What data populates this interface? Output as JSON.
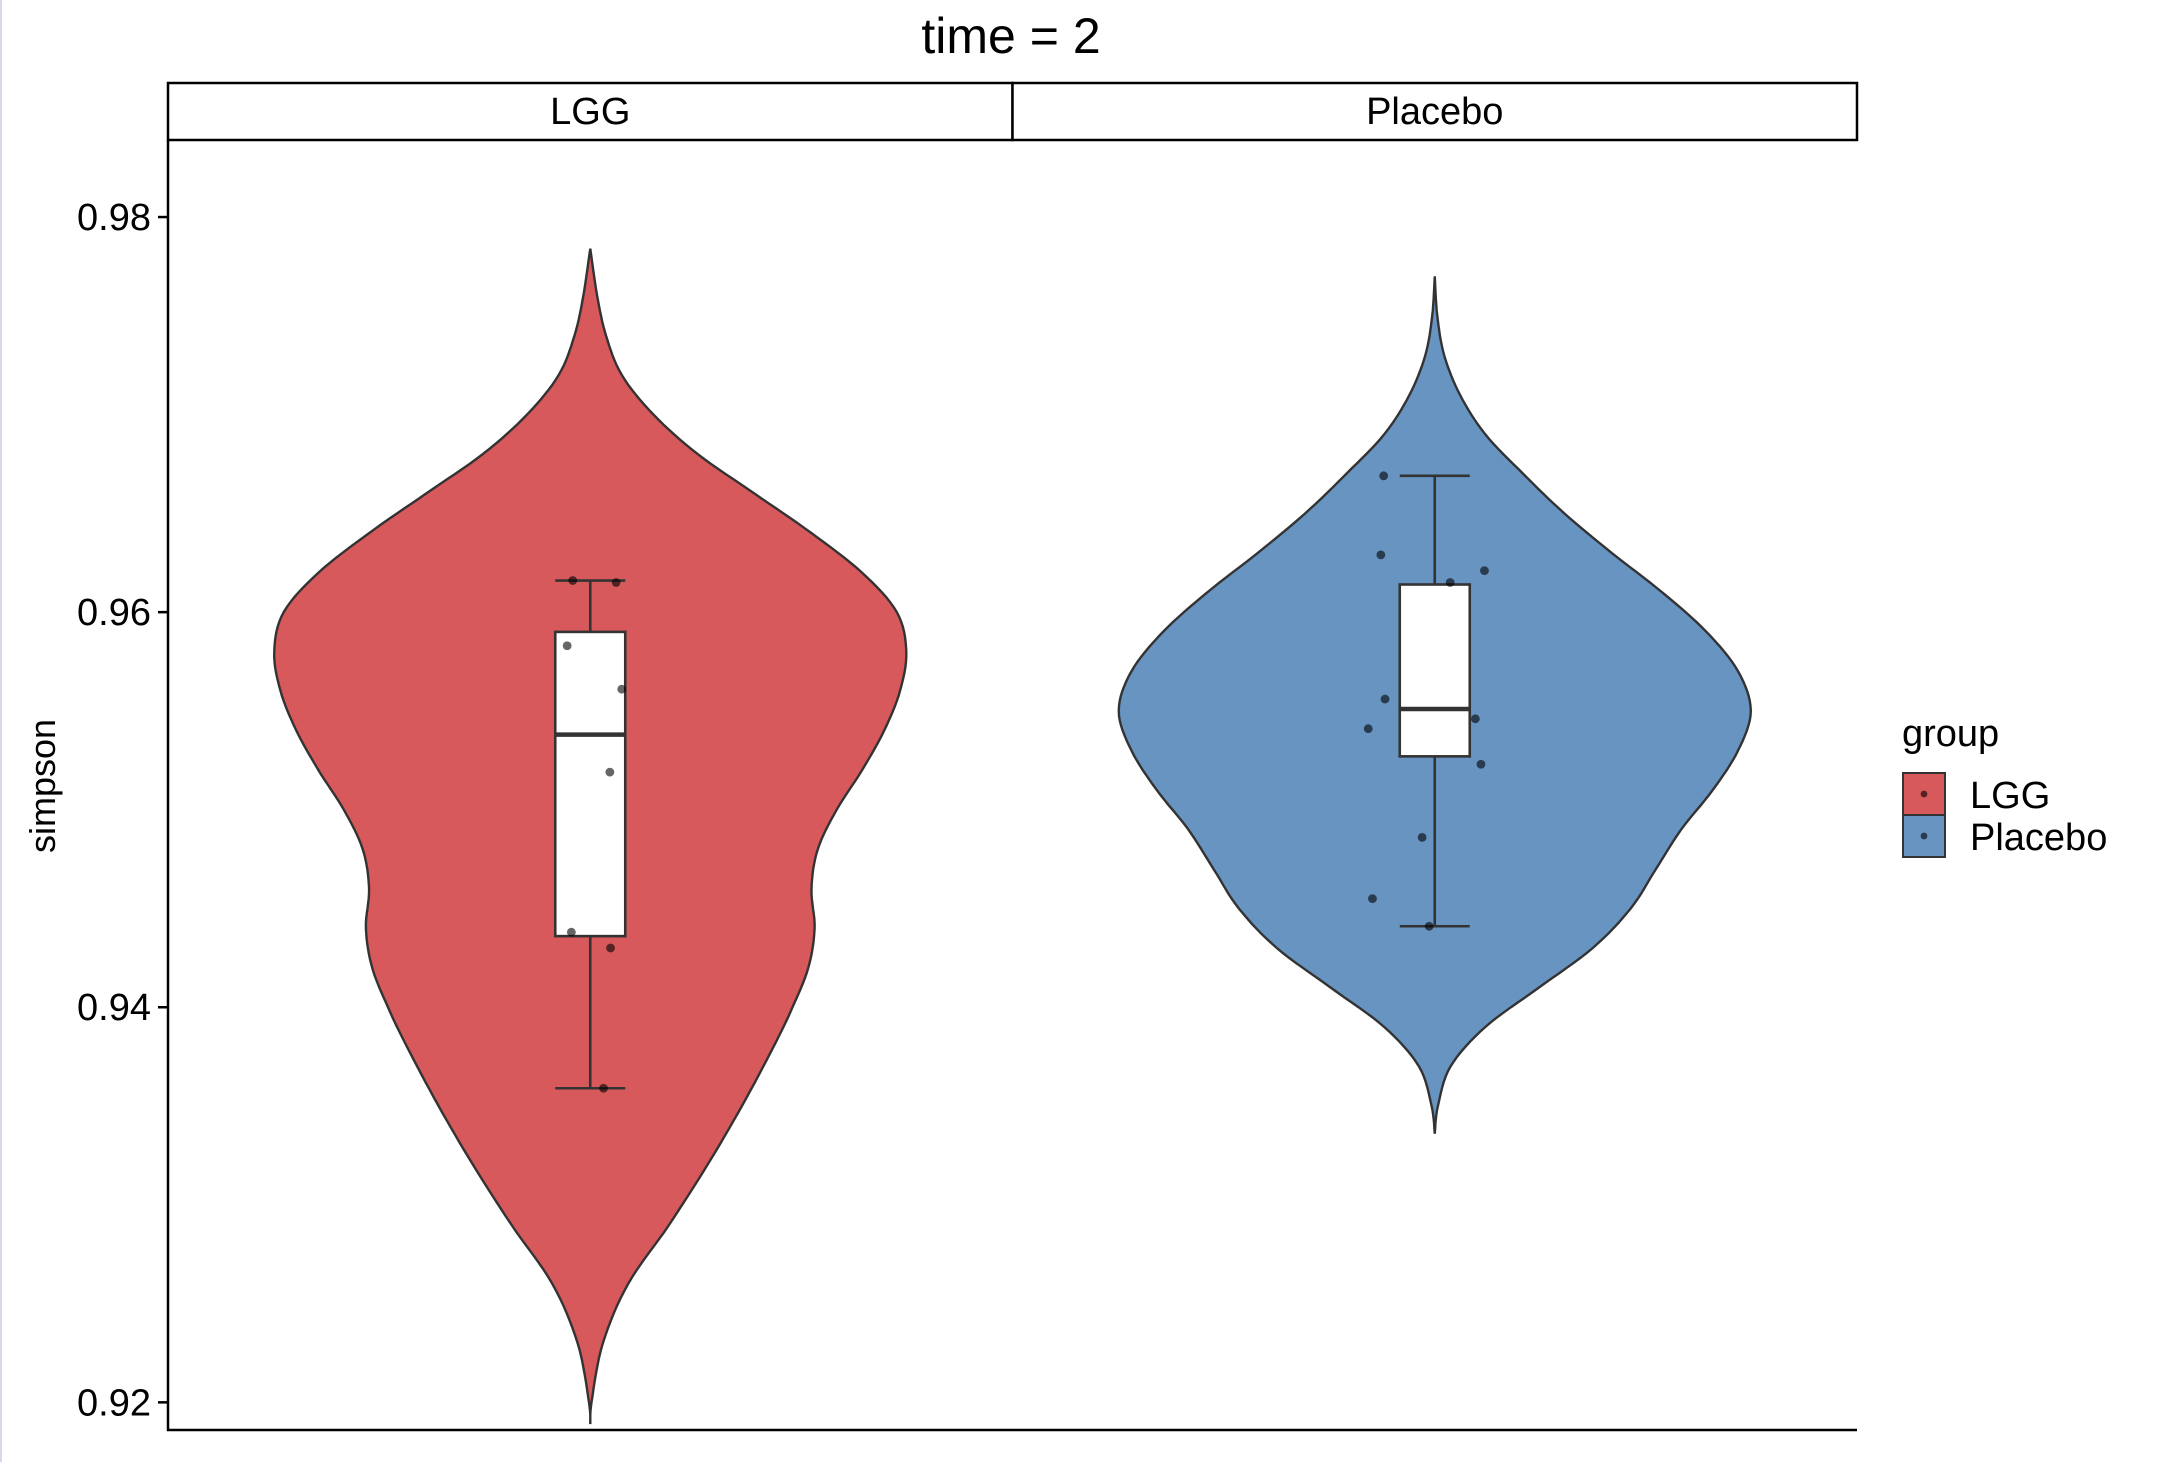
{
  "chart_data": {
    "type": "violin",
    "title": "time = 2",
    "xlabel": "",
    "ylabel": "simpson",
    "ylim": [
      0.9186,
      0.9839
    ],
    "yticks": [
      0.92,
      0.94,
      0.96,
      0.98
    ],
    "ytick_labels": [
      "0.92",
      "0.94",
      "0.96",
      "0.98"
    ],
    "grid": false,
    "legend": {
      "title": "group",
      "position": "right",
      "entries": [
        "LGG",
        "Placebo"
      ]
    },
    "facets": [
      {
        "label": "LGG",
        "group": "LGG",
        "color": "#d8595c",
        "violin_range": [
          0.9189,
          0.9784
        ],
        "density": [
          [
            0.9189,
            0.0
          ],
          [
            0.92,
            0.004
          ],
          [
            0.923,
            0.04
          ],
          [
            0.926,
            0.12
          ],
          [
            0.929,
            0.25
          ],
          [
            0.932,
            0.37
          ],
          [
            0.935,
            0.48
          ],
          [
            0.938,
            0.58
          ],
          [
            0.94,
            0.64
          ],
          [
            0.942,
            0.69
          ],
          [
            0.944,
            0.71
          ],
          [
            0.946,
            0.7
          ],
          [
            0.948,
            0.72
          ],
          [
            0.95,
            0.78
          ],
          [
            0.952,
            0.86
          ],
          [
            0.954,
            0.93
          ],
          [
            0.956,
            0.98
          ],
          [
            0.958,
            1.0
          ],
          [
            0.96,
            0.97
          ],
          [
            0.962,
            0.86
          ],
          [
            0.964,
            0.7
          ],
          [
            0.966,
            0.52
          ],
          [
            0.968,
            0.34
          ],
          [
            0.97,
            0.2
          ],
          [
            0.972,
            0.1
          ],
          [
            0.974,
            0.05
          ],
          [
            0.976,
            0.022
          ],
          [
            0.9784,
            0.0
          ]
        ],
        "box": {
          "min": 0.9359,
          "q1": 0.9436,
          "median": 0.9538,
          "q3": 0.959,
          "max": 0.9616
        },
        "points": [
          {
            "value": 0.9616,
            "jitter": -0.25
          },
          {
            "value": 0.9615,
            "jitter": 0.37
          },
          {
            "value": 0.9583,
            "jitter": -0.33
          },
          {
            "value": 0.9561,
            "jitter": 0.45
          },
          {
            "value": 0.9519,
            "jitter": 0.28
          },
          {
            "value": 0.9438,
            "jitter": -0.27
          },
          {
            "value": 0.943,
            "jitter": 0.29
          },
          {
            "value": 0.9359,
            "jitter": 0.19
          }
        ]
      },
      {
        "label": "Placebo",
        "group": "Placebo",
        "color": "#6894c2",
        "violin_range": [
          0.9336,
          0.977
        ],
        "density": [
          [
            0.9336,
            0.0
          ],
          [
            0.935,
            0.01
          ],
          [
            0.937,
            0.05
          ],
          [
            0.939,
            0.16
          ],
          [
            0.941,
            0.33
          ],
          [
            0.943,
            0.5
          ],
          [
            0.945,
            0.62
          ],
          [
            0.947,
            0.7
          ],
          [
            0.949,
            0.78
          ],
          [
            0.951,
            0.88
          ],
          [
            0.953,
            0.96
          ],
          [
            0.955,
            1.0
          ],
          [
            0.957,
            0.96
          ],
          [
            0.959,
            0.86
          ],
          [
            0.961,
            0.72
          ],
          [
            0.963,
            0.56
          ],
          [
            0.965,
            0.41
          ],
          [
            0.967,
            0.28
          ],
          [
            0.969,
            0.16
          ],
          [
            0.971,
            0.08
          ],
          [
            0.973,
            0.03
          ],
          [
            0.975,
            0.008
          ],
          [
            0.977,
            0.0
          ]
        ],
        "box": {
          "min": 0.9441,
          "q1": 0.9527,
          "median": 0.9551,
          "q3": 0.9614,
          "max": 0.9669
        },
        "points": [
          {
            "value": 0.9669,
            "jitter": -0.73
          },
          {
            "value": 0.9629,
            "jitter": -0.77
          },
          {
            "value": 0.9621,
            "jitter": 0.71
          },
          {
            "value": 0.9615,
            "jitter": 0.22
          },
          {
            "value": 0.9556,
            "jitter": -0.71
          },
          {
            "value": 0.9546,
            "jitter": 0.58
          },
          {
            "value": 0.9541,
            "jitter": -0.95
          },
          {
            "value": 0.9523,
            "jitter": 0.66
          },
          {
            "value": 0.9486,
            "jitter": -0.18
          },
          {
            "value": 0.9455,
            "jitter": -0.89
          },
          {
            "value": 0.9441,
            "jitter": -0.08
          }
        ]
      }
    ]
  }
}
